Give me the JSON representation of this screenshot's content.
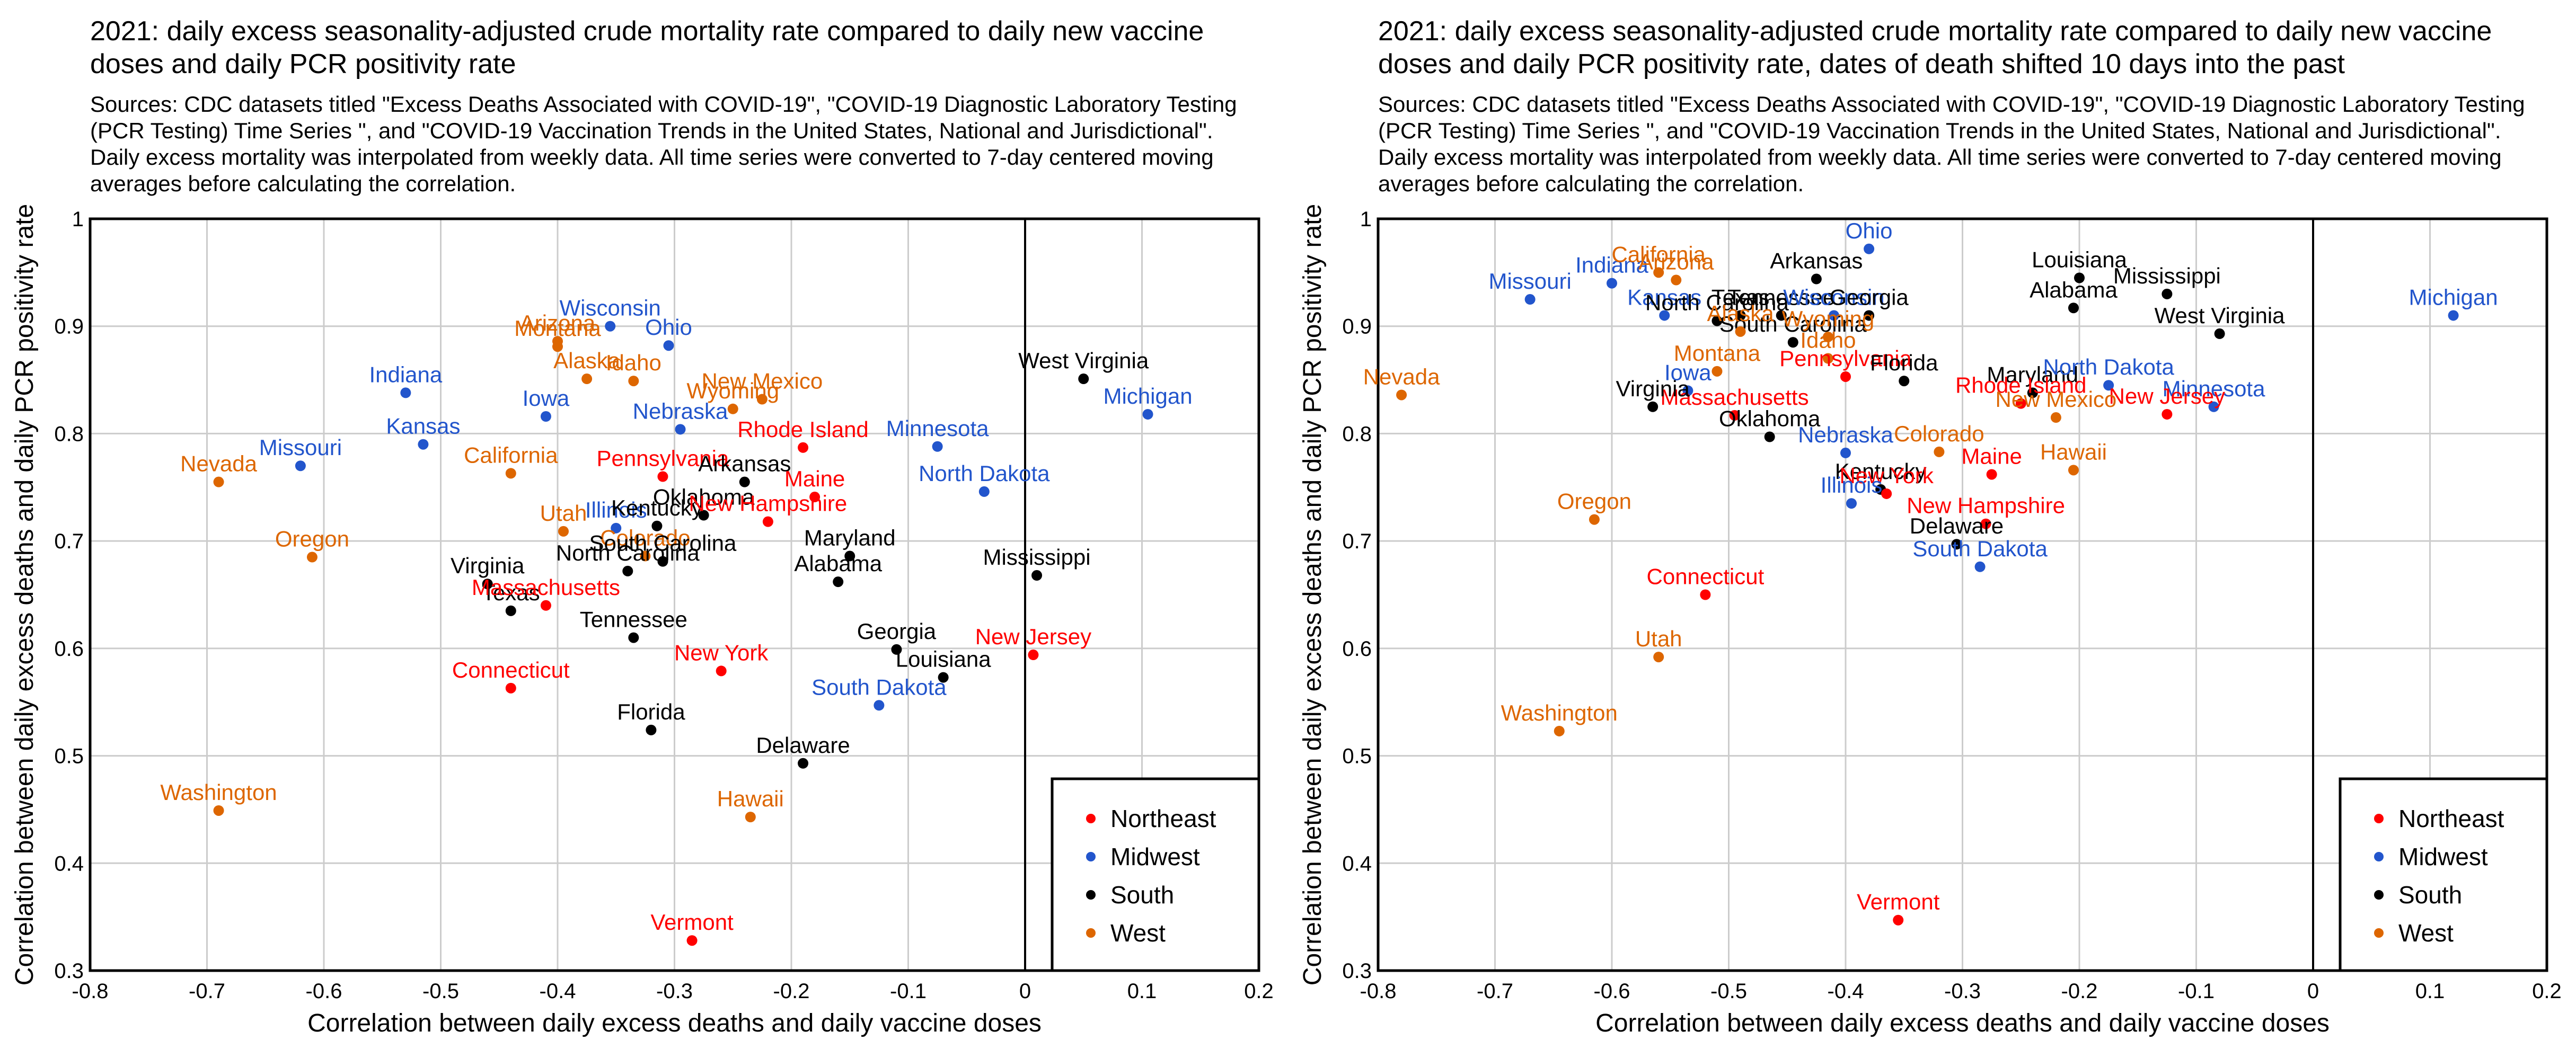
{
  "colors": {
    "Northeast": "#ff0000",
    "Midwest": "#2255cc",
    "South": "#000000",
    "West": "#dd6600"
  },
  "legend": [
    "Northeast",
    "Midwest",
    "South",
    "West"
  ],
  "chart_data": [
    {
      "type": "scatter",
      "title": "2021: daily excess seasonality-adjusted crude mortality rate compared to daily new vaccine doses and daily PCR positivity rate",
      "subtitle": "Sources: CDC datasets titled \"Excess Deaths Associated with COVID-19\", \"COVID-19 Diagnostic Laboratory Testing (PCR Testing) Time Series \", and \"COVID-19 Vaccination Trends in the United States, National and Jurisdictional\". Daily excess mortality was interpolated from weekly data. All time series were converted to 7-day centered moving averages before calculating the correlation.",
      "xlabel": "Correlation between daily excess deaths and daily vaccine doses",
      "ylabel": "Correlation between daily excess deaths and daily PCR positivity rate",
      "xlim": [
        -0.8,
        0.2
      ],
      "ylim": [
        0.3,
        1
      ],
      "xticks": [
        "-0.8",
        "-0.7",
        "-0.6",
        "-0.5",
        "-0.4",
        "-0.3",
        "-0.2",
        "-0.1",
        "0",
        "0.1",
        "0.2"
      ],
      "yticks": [
        "0.3",
        "0.4",
        "0.5",
        "0.6",
        "0.7",
        "0.8",
        "0.9",
        "1"
      ],
      "legend_position": "bottom-right",
      "points": [
        {
          "name": "Nevada",
          "region": "West",
          "x": -0.69,
          "y": 0.755
        },
        {
          "name": "Oregon",
          "region": "West",
          "x": -0.61,
          "y": 0.685
        },
        {
          "name": "Washington",
          "region": "West",
          "x": -0.69,
          "y": 0.449
        },
        {
          "name": "Missouri",
          "region": "Midwest",
          "x": -0.62,
          "y": 0.77
        },
        {
          "name": "Indiana",
          "region": "Midwest",
          "x": -0.53,
          "y": 0.838
        },
        {
          "name": "Kansas",
          "region": "Midwest",
          "x": -0.515,
          "y": 0.79
        },
        {
          "name": "California",
          "region": "West",
          "x": -0.44,
          "y": 0.763
        },
        {
          "name": "Arizona",
          "region": "West",
          "x": -0.4,
          "y": 0.886
        },
        {
          "name": "Montana",
          "region": "West",
          "x": -0.4,
          "y": 0.881
        },
        {
          "name": "Wisconsin",
          "region": "Midwest",
          "x": -0.355,
          "y": 0.9
        },
        {
          "name": "Ohio",
          "region": "Midwest",
          "x": -0.305,
          "y": 0.882
        },
        {
          "name": "Alaska",
          "region": "West",
          "x": -0.375,
          "y": 0.851
        },
        {
          "name": "Idaho",
          "region": "West",
          "x": -0.335,
          "y": 0.849
        },
        {
          "name": "Iowa",
          "region": "Midwest",
          "x": -0.41,
          "y": 0.816
        },
        {
          "name": "Nebraska",
          "region": "Midwest",
          "x": -0.295,
          "y": 0.804
        },
        {
          "name": "Wyoming",
          "region": "West",
          "x": -0.25,
          "y": 0.823
        },
        {
          "name": "New Mexico",
          "region": "West",
          "x": -0.225,
          "y": 0.832
        },
        {
          "name": "Pennsylvania",
          "region": "Northeast",
          "x": -0.31,
          "y": 0.76
        },
        {
          "name": "Arkansas",
          "region": "South",
          "x": -0.24,
          "y": 0.755
        },
        {
          "name": "Rhode Island",
          "region": "Northeast",
          "x": -0.19,
          "y": 0.787
        },
        {
          "name": "Minnesota",
          "region": "Midwest",
          "x": -0.075,
          "y": 0.788
        },
        {
          "name": "North Dakota",
          "region": "Midwest",
          "x": -0.035,
          "y": 0.746
        },
        {
          "name": "West Virginia",
          "region": "South",
          "x": 0.05,
          "y": 0.851
        },
        {
          "name": "Michigan",
          "region": "Midwest",
          "x": 0.105,
          "y": 0.818
        },
        {
          "name": "Utah",
          "region": "West",
          "x": -0.395,
          "y": 0.709
        },
        {
          "name": "Illinois",
          "region": "Midwest",
          "x": -0.35,
          "y": 0.712
        },
        {
          "name": "Kentucky",
          "region": "South",
          "x": -0.315,
          "y": 0.714
        },
        {
          "name": "Oklahoma",
          "region": "South",
          "x": -0.275,
          "y": 0.724
        },
        {
          "name": "Maine",
          "region": "Northeast",
          "x": -0.18,
          "y": 0.741
        },
        {
          "name": "New Hampshire",
          "region": "Northeast",
          "x": -0.22,
          "y": 0.718
        },
        {
          "name": "Colorado",
          "region": "West",
          "x": -0.325,
          "y": 0.686
        },
        {
          "name": "South Carolina",
          "region": "South",
          "x": -0.31,
          "y": 0.681
        },
        {
          "name": "Maryland",
          "region": "South",
          "x": -0.15,
          "y": 0.686
        },
        {
          "name": "Alabama",
          "region": "South",
          "x": -0.16,
          "y": 0.662
        },
        {
          "name": "Mississippi",
          "region": "South",
          "x": 0.01,
          "y": 0.668
        },
        {
          "name": "Virginia",
          "region": "South",
          "x": -0.46,
          "y": 0.66
        },
        {
          "name": "North Carolina",
          "region": "South",
          "x": -0.34,
          "y": 0.672
        },
        {
          "name": "Texas",
          "region": "South",
          "x": -0.44,
          "y": 0.635
        },
        {
          "name": "Massachusetts",
          "region": "Northeast",
          "x": -0.41,
          "y": 0.64
        },
        {
          "name": "Tennessee",
          "region": "South",
          "x": -0.335,
          "y": 0.61
        },
        {
          "name": "Connecticut",
          "region": "Northeast",
          "x": -0.44,
          "y": 0.563
        },
        {
          "name": "Florida",
          "region": "South",
          "x": -0.32,
          "y": 0.524
        },
        {
          "name": "New York",
          "region": "Northeast",
          "x": -0.26,
          "y": 0.579
        },
        {
          "name": "Georgia",
          "region": "South",
          "x": -0.11,
          "y": 0.599
        },
        {
          "name": "Louisiana",
          "region": "South",
          "x": -0.07,
          "y": 0.573
        },
        {
          "name": "South Dakota",
          "region": "Midwest",
          "x": -0.125,
          "y": 0.547
        },
        {
          "name": "Delaware",
          "region": "South",
          "x": -0.19,
          "y": 0.493
        },
        {
          "name": "Hawaii",
          "region": "West",
          "x": -0.235,
          "y": 0.443
        },
        {
          "name": "New Jersey",
          "region": "Northeast",
          "x": 0.007,
          "y": 0.594
        },
        {
          "name": "Vermont",
          "region": "Northeast",
          "x": -0.285,
          "y": 0.328
        }
      ]
    },
    {
      "type": "scatter",
      "title": "2021: daily excess seasonality-adjusted crude mortality rate compared to daily new vaccine doses and daily PCR positivity rate, dates of death shifted 10 days into the past",
      "subtitle": "Sources: CDC datasets titled \"Excess Deaths Associated with COVID-19\", \"COVID-19 Diagnostic Laboratory Testing (PCR Testing) Time Series \", and \"COVID-19 Vaccination Trends in the United States, National and Jurisdictional\". Daily excess mortality was interpolated from weekly data. All time series were converted to 7-day centered moving averages before calculating the correlation.",
      "xlabel": "Correlation between daily excess deaths and daily vaccine doses",
      "ylabel": "Correlation between daily excess deaths and daily PCR positivity rate",
      "xlim": [
        -0.8,
        0.2
      ],
      "ylim": [
        0.3,
        1
      ],
      "xticks": [
        "-0.8",
        "-0.7",
        "-0.6",
        "-0.5",
        "-0.4",
        "-0.3",
        "-0.2",
        "-0.1",
        "0",
        "0.1",
        "0.2"
      ],
      "yticks": [
        "0.3",
        "0.4",
        "0.5",
        "0.6",
        "0.7",
        "0.8",
        "0.9",
        "1"
      ],
      "legend_position": "bottom-right",
      "points": [
        {
          "name": "Nevada",
          "region": "West",
          "x": -0.78,
          "y": 0.836
        },
        {
          "name": "Missouri",
          "region": "Midwest",
          "x": -0.67,
          "y": 0.925
        },
        {
          "name": "Indiana",
          "region": "Midwest",
          "x": -0.6,
          "y": 0.94
        },
        {
          "name": "California",
          "region": "West",
          "x": -0.56,
          "y": 0.95
        },
        {
          "name": "Arizona",
          "region": "West",
          "x": -0.545,
          "y": 0.943
        },
        {
          "name": "Kansas",
          "region": "Midwest",
          "x": -0.555,
          "y": 0.91
        },
        {
          "name": "North Carolina",
          "region": "South",
          "x": -0.51,
          "y": 0.905
        },
        {
          "name": "Texas",
          "region": "South",
          "x": -0.49,
          "y": 0.91
        },
        {
          "name": "Tennessee",
          "region": "South",
          "x": -0.455,
          "y": 0.91
        },
        {
          "name": "Arkansas",
          "region": "South",
          "x": -0.425,
          "y": 0.944
        },
        {
          "name": "Ohio",
          "region": "Midwest",
          "x": -0.38,
          "y": 0.972
        },
        {
          "name": "Wisconsin",
          "region": "Midwest",
          "x": -0.41,
          "y": 0.91
        },
        {
          "name": "Georgia",
          "region": "South",
          "x": -0.38,
          "y": 0.91
        },
        {
          "name": "South Carolina",
          "region": "South",
          "x": -0.445,
          "y": 0.885
        },
        {
          "name": "Alaska",
          "region": "West",
          "x": -0.49,
          "y": 0.895
        },
        {
          "name": "Wyoming",
          "region": "West",
          "x": -0.415,
          "y": 0.89
        },
        {
          "name": "Idaho",
          "region": "West",
          "x": -0.415,
          "y": 0.87
        },
        {
          "name": "Montana",
          "region": "West",
          "x": -0.51,
          "y": 0.858
        },
        {
          "name": "Iowa",
          "region": "Midwest",
          "x": -0.535,
          "y": 0.84
        },
        {
          "name": "Pennsylvania",
          "region": "Northeast",
          "x": -0.4,
          "y": 0.853
        },
        {
          "name": "Florida",
          "region": "South",
          "x": -0.35,
          "y": 0.849
        },
        {
          "name": "Maryland",
          "region": "South",
          "x": -0.24,
          "y": 0.838
        },
        {
          "name": "Louisiana",
          "region": "South",
          "x": -0.2,
          "y": 0.945
        },
        {
          "name": "Alabama",
          "region": "South",
          "x": -0.205,
          "y": 0.917
        },
        {
          "name": "Mississippi",
          "region": "South",
          "x": -0.125,
          "y": 0.93
        },
        {
          "name": "West Virginia",
          "region": "South",
          "x": -0.08,
          "y": 0.893
        },
        {
          "name": "Michigan",
          "region": "Midwest",
          "x": 0.12,
          "y": 0.91
        },
        {
          "name": "North Dakota",
          "region": "Midwest",
          "x": -0.175,
          "y": 0.845
        },
        {
          "name": "Minnesota",
          "region": "Midwest",
          "x": -0.085,
          "y": 0.825
        },
        {
          "name": "New Jersey",
          "region": "Northeast",
          "x": -0.125,
          "y": 0.818
        },
        {
          "name": "Rhode Island",
          "region": "Northeast",
          "x": -0.25,
          "y": 0.828
        },
        {
          "name": "New Mexico",
          "region": "West",
          "x": -0.22,
          "y": 0.815
        },
        {
          "name": "Hawaii",
          "region": "West",
          "x": -0.205,
          "y": 0.766
        },
        {
          "name": "Colorado",
          "region": "West",
          "x": -0.32,
          "y": 0.783
        },
        {
          "name": "Massachusetts",
          "region": "Northeast",
          "x": -0.495,
          "y": 0.817
        },
        {
          "name": "Virginia",
          "region": "South",
          "x": -0.565,
          "y": 0.825
        },
        {
          "name": "Nebraska",
          "region": "Midwest",
          "x": -0.4,
          "y": 0.782
        },
        {
          "name": "Oklahoma",
          "region": "South",
          "x": -0.465,
          "y": 0.797
        },
        {
          "name": "Kentucky",
          "region": "South",
          "x": -0.37,
          "y": 0.748
        },
        {
          "name": "New York",
          "region": "Northeast",
          "x": -0.365,
          "y": 0.744
        },
        {
          "name": "Illinois",
          "region": "Midwest",
          "x": -0.395,
          "y": 0.735
        },
        {
          "name": "Maine",
          "region": "Northeast",
          "x": -0.275,
          "y": 0.762
        },
        {
          "name": "New Hampshire",
          "region": "Northeast",
          "x": -0.28,
          "y": 0.716
        },
        {
          "name": "Delaware",
          "region": "South",
          "x": -0.305,
          "y": 0.697
        },
        {
          "name": "South Dakota",
          "region": "Midwest",
          "x": -0.285,
          "y": 0.676
        },
        {
          "name": "Oregon",
          "region": "West",
          "x": -0.615,
          "y": 0.72
        },
        {
          "name": "Connecticut",
          "region": "Northeast",
          "x": -0.52,
          "y": 0.65
        },
        {
          "name": "Utah",
          "region": "West",
          "x": -0.56,
          "y": 0.592
        },
        {
          "name": "Washington",
          "region": "West",
          "x": -0.645,
          "y": 0.523
        },
        {
          "name": "Vermont",
          "region": "Northeast",
          "x": -0.355,
          "y": 0.347
        }
      ]
    }
  ]
}
